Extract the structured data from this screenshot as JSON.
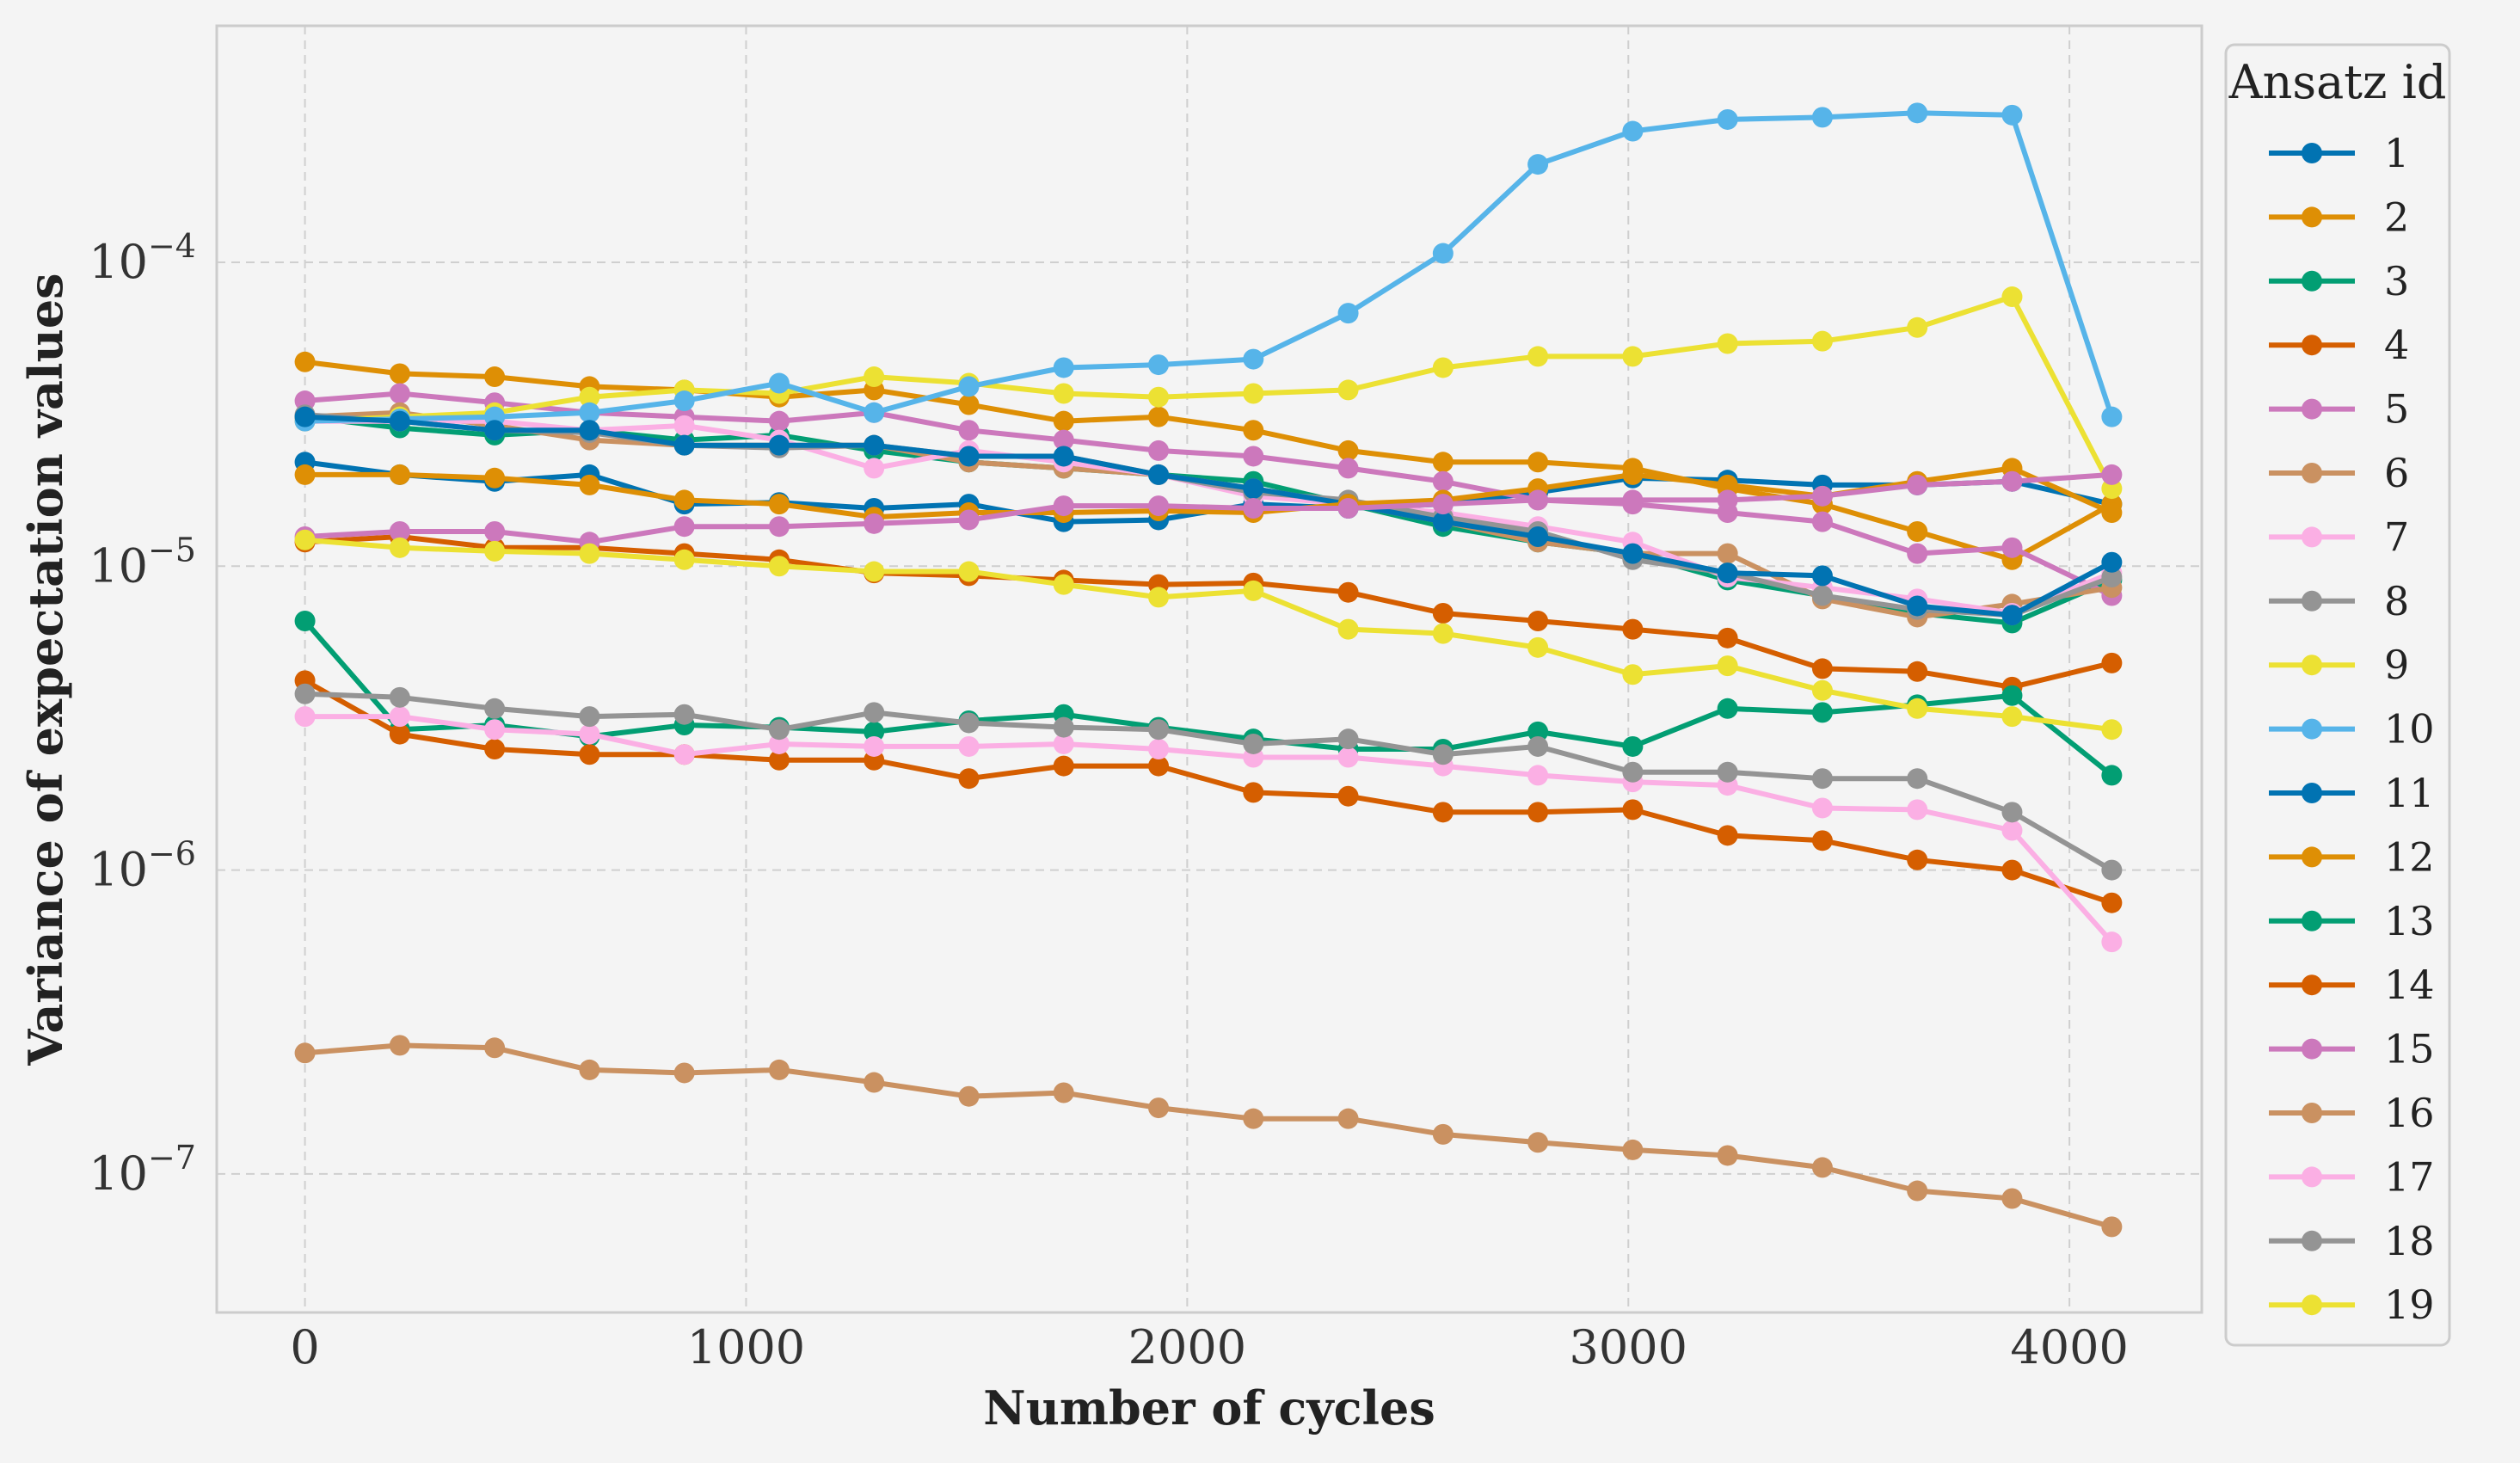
{
  "chart_data": {
    "type": "line",
    "xlabel": "Number of cycles",
    "ylabel": "Variance of expectation values",
    "yscale": "log",
    "xlim": [
      -200,
      4300
    ],
    "ylim": [
      3.5e-08,
      0.0006
    ],
    "xticks": [
      0,
      1000,
      2000,
      3000,
      4000
    ],
    "xtick_labels": [
      "0",
      "1000",
      "2000",
      "3000",
      "4000"
    ],
    "yticks": [
      1e-07,
      1e-06,
      1e-05,
      0.0001
    ],
    "ytick_labels": [
      {
        "base": "10",
        "exp": "−7"
      },
      {
        "base": "10",
        "exp": "−6"
      },
      {
        "base": "10",
        "exp": "−5"
      },
      {
        "base": "10",
        "exp": "−4"
      }
    ],
    "grid": true,
    "legend": {
      "title": "Ansatz id",
      "placement": "outside-right"
    },
    "x": [
      0,
      215,
      430,
      645,
      860,
      1075,
      1290,
      1505,
      1720,
      1935,
      2150,
      2365,
      2580,
      2795,
      3010,
      3225,
      3440,
      3655,
      3870,
      4096
    ],
    "series": [
      {
        "name": "1",
        "color": "#0173b2",
        "values": [
          2.2e-05,
          2e-05,
          1.9e-05,
          2e-05,
          1.6e-05,
          1.62e-05,
          1.55e-05,
          1.6e-05,
          1.4e-05,
          1.42e-05,
          1.6e-05,
          1.55e-05,
          1.6e-05,
          1.75e-05,
          1.95e-05,
          1.92e-05,
          1.85e-05,
          1.85e-05,
          1.9e-05,
          1.6e-05
        ]
      },
      {
        "name": "2",
        "color": "#de8f05",
        "values": [
          4.7e-05,
          4.3e-05,
          4.2e-05,
          3.9e-05,
          3.8e-05,
          3.6e-05,
          3.8e-05,
          3.4e-05,
          3e-05,
          3.1e-05,
          2.8e-05,
          2.4e-05,
          2.2e-05,
          2.2e-05,
          2.1e-05,
          1.8e-05,
          1.6e-05,
          1.3e-05,
          1.05e-05,
          1.6e-05
        ]
      },
      {
        "name": "3",
        "color": "#029e73",
        "values": [
          3.1e-05,
          2.85e-05,
          2.7e-05,
          2.8e-05,
          2.6e-05,
          2.7e-05,
          2.4e-05,
          2.2e-05,
          2.1e-05,
          2e-05,
          1.9e-05,
          1.6e-05,
          1.35e-05,
          1.2e-05,
          1.1e-05,
          9e-06,
          8e-06,
          7e-06,
          6.5e-06,
          9e-06
        ]
      },
      {
        "name": "4",
        "color": "#d55e00",
        "values": [
          1.2e-05,
          1.25e-05,
          1.15e-05,
          1.15e-05,
          1.1e-05,
          1.05e-05,
          9.5e-06,
          9.3e-06,
          9e-06,
          8.7e-06,
          8.8e-06,
          8.2e-06,
          7e-06,
          6.6e-06,
          6.2e-06,
          5.8e-06,
          4.6e-06,
          4.5e-06,
          4e-06,
          4.8e-06
        ]
      },
      {
        "name": "5",
        "color": "#cc78bc",
        "values": [
          3.5e-05,
          3.7e-05,
          3.45e-05,
          3.2e-05,
          3.1e-05,
          3e-05,
          3.2e-05,
          2.8e-05,
          2.6e-05,
          2.4e-05,
          2.3e-05,
          2.1e-05,
          1.9e-05,
          1.65e-05,
          1.6e-05,
          1.5e-05,
          1.4e-05,
          1.1e-05,
          1.15e-05,
          8e-06
        ]
      },
      {
        "name": "6",
        "color": "#ca9161",
        "values": [
          3.1e-05,
          3.2e-05,
          2.9e-05,
          2.6e-05,
          2.5e-05,
          2.5e-05,
          2.5e-05,
          2.2e-05,
          2.1e-05,
          2e-05,
          1.8e-05,
          1.6e-05,
          1.4e-05,
          1.2e-05,
          1.1e-05,
          1.1e-05,
          7.8e-06,
          6.8e-06,
          7.5e-06,
          8.5e-06
        ]
      },
      {
        "name": "7",
        "color": "#fbafe4",
        "values": [
          3e-05,
          3e-05,
          3e-05,
          2.8e-05,
          2.9e-05,
          2.6e-05,
          2.1e-05,
          2.4e-05,
          2.2e-05,
          2e-05,
          1.7e-05,
          1.6e-05,
          1.5e-05,
          1.35e-05,
          1.2e-05,
          9.2e-06,
          8.5e-06,
          7.8e-06,
          7e-06,
          9.5e-06
        ]
      },
      {
        "name": "8",
        "color": "#949494",
        "values": [
          3.15e-05,
          3e-05,
          2.8e-05,
          2.75e-05,
          2.5e-05,
          2.45e-05,
          2.5e-05,
          2.3e-05,
          2.3e-05,
          2e-05,
          1.75e-05,
          1.65e-05,
          1.45e-05,
          1.3e-05,
          1.05e-05,
          9.5e-06,
          8e-06,
          7.2e-06,
          6.9e-06,
          9.2e-06
        ]
      },
      {
        "name": "9",
        "color": "#ece133",
        "values": [
          3e-05,
          3.1e-05,
          3.2e-05,
          3.6e-05,
          3.8e-05,
          3.7e-05,
          4.2e-05,
          4e-05,
          3.7e-05,
          3.6e-05,
          3.7e-05,
          3.8e-05,
          4.5e-05,
          4.9e-05,
          4.9e-05,
          5.4e-05,
          5.5e-05,
          6.1e-05,
          7.7e-05,
          1.8e-05
        ]
      },
      {
        "name": "10",
        "color": "#56b4e9",
        "values": [
          3e-05,
          3.05e-05,
          3.1e-05,
          3.2e-05,
          3.5e-05,
          4e-05,
          3.2e-05,
          3.9e-05,
          4.5e-05,
          4.6e-05,
          4.8e-05,
          6.8e-05,
          0.000107,
          0.00021,
          0.00027,
          0.000295,
          0.0003,
          0.00031,
          0.000305,
          3.1e-05
        ]
      },
      {
        "name": "11",
        "color": "#0173b2",
        "values": [
          3.1e-05,
          3e-05,
          2.8e-05,
          2.8e-05,
          2.5e-05,
          2.5e-05,
          2.5e-05,
          2.3e-05,
          2.3e-05,
          2e-05,
          1.8e-05,
          1.6e-05,
          1.4e-05,
          1.25e-05,
          1.1e-05,
          9.5e-06,
          9.3e-06,
          7.4e-06,
          6.9e-06,
          1.03e-05
        ]
      },
      {
        "name": "12",
        "color": "#de8f05",
        "values": [
          2e-05,
          2e-05,
          1.95e-05,
          1.85e-05,
          1.65e-05,
          1.6e-05,
          1.45e-05,
          1.5e-05,
          1.5e-05,
          1.52e-05,
          1.5e-05,
          1.6e-05,
          1.65e-05,
          1.8e-05,
          2e-05,
          1.85e-05,
          1.7e-05,
          1.9e-05,
          2.1e-05,
          1.5e-05
        ]
      },
      {
        "name": "13",
        "color": "#029e73",
        "values": [
          6.6e-06,
          2.9e-06,
          3e-06,
          2.75e-06,
          3e-06,
          2.95e-06,
          2.85e-06,
          3.1e-06,
          3.25e-06,
          2.95e-06,
          2.7e-06,
          2.5e-06,
          2.5e-06,
          2.85e-06,
          2.55e-06,
          3.4e-06,
          3.3e-06,
          3.5e-06,
          3.75e-06,
          2.05e-06
        ]
      },
      {
        "name": "14",
        "color": "#d55e00",
        "values": [
          4.2e-06,
          2.8e-06,
          2.5e-06,
          2.4e-06,
          2.4e-06,
          2.3e-06,
          2.3e-06,
          2e-06,
          2.2e-06,
          2.2e-06,
          1.8e-06,
          1.75e-06,
          1.55e-06,
          1.55e-06,
          1.58e-06,
          1.3e-06,
          1.25e-06,
          1.08e-06,
          1e-06,
          7.8e-07
        ]
      },
      {
        "name": "15",
        "color": "#cc78bc",
        "values": [
          1.25e-05,
          1.3e-05,
          1.3e-05,
          1.2e-05,
          1.35e-05,
          1.35e-05,
          1.38e-05,
          1.42e-05,
          1.58e-05,
          1.58e-05,
          1.55e-05,
          1.55e-05,
          1.6e-05,
          1.65e-05,
          1.65e-05,
          1.65e-05,
          1.7e-05,
          1.85e-05,
          1.9e-05,
          2e-05
        ]
      },
      {
        "name": "16",
        "color": "#ca9161",
        "values": [
          2.5e-07,
          2.65e-07,
          2.6e-07,
          2.2e-07,
          2.15e-07,
          2.2e-07,
          2e-07,
          1.8e-07,
          1.85e-07,
          1.65e-07,
          1.52e-07,
          1.52e-07,
          1.35e-07,
          1.27e-07,
          1.2e-07,
          1.15e-07,
          1.05e-07,
          8.8e-08,
          8.3e-08,
          6.7e-08
        ]
      },
      {
        "name": "17",
        "color": "#fbafe4",
        "values": [
          3.2e-06,
          3.2e-06,
          2.9e-06,
          2.8e-06,
          2.4e-06,
          2.6e-06,
          2.55e-06,
          2.55e-06,
          2.6e-06,
          2.5e-06,
          2.35e-06,
          2.35e-06,
          2.2e-06,
          2.05e-06,
          1.95e-06,
          1.9e-06,
          1.6e-06,
          1.58e-06,
          1.35e-06,
          5.8e-07
        ]
      },
      {
        "name": "18",
        "color": "#949494",
        "values": [
          3.8e-06,
          3.7e-06,
          3.4e-06,
          3.2e-06,
          3.25e-06,
          2.9e-06,
          3.3e-06,
          3.05e-06,
          2.95e-06,
          2.9e-06,
          2.6e-06,
          2.7e-06,
          2.4e-06,
          2.55e-06,
          2.1e-06,
          2.1e-06,
          2e-06,
          2e-06,
          1.55e-06,
          1e-06
        ]
      },
      {
        "name": "19",
        "color": "#ece133",
        "values": [
          1.22e-05,
          1.15e-05,
          1.12e-05,
          1.1e-05,
          1.05e-05,
          1e-05,
          9.6e-06,
          9.6e-06,
          8.7e-06,
          7.9e-06,
          8.3e-06,
          6.2e-06,
          6e-06,
          5.4e-06,
          4.4e-06,
          4.7e-06,
          3.9e-06,
          3.4e-06,
          3.2e-06,
          2.9e-06
        ]
      }
    ]
  }
}
